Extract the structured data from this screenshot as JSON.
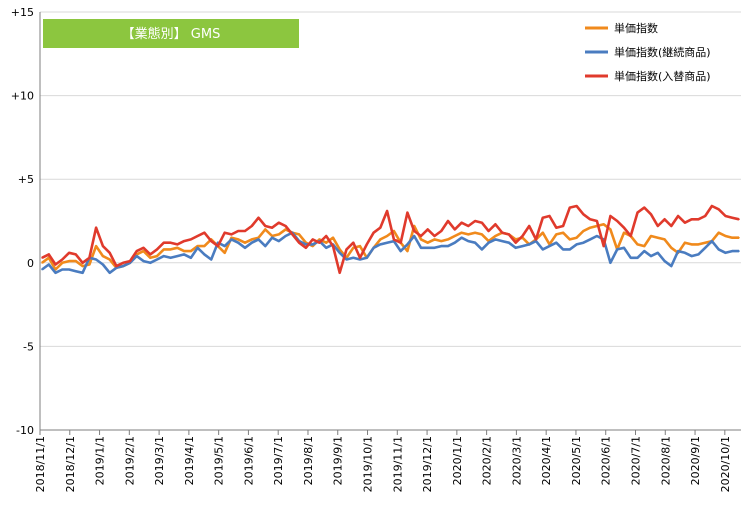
{
  "chart_data": {
    "type": "line",
    "title": "【業態別】 GMS",
    "title_box_color": "#8cc63f",
    "ylim": [
      -10,
      15
    ],
    "y_ticks": [
      {
        "value": 15,
        "label": "+15"
      },
      {
        "value": 10,
        "label": "+10"
      },
      {
        "value": 5,
        "label": "+5"
      },
      {
        "value": 0,
        "label": "0"
      },
      {
        "value": -5,
        "label": "-5"
      },
      {
        "value": -10,
        "label": "-10"
      }
    ],
    "x_tick_labels": [
      "2018/11/1",
      "2018/12/1",
      "2019/1/1",
      "2019/2/1",
      "2019/3/1",
      "2019/4/1",
      "2019/5/1",
      "2019/6/1",
      "2019/7/1",
      "2019/8/1",
      "2019/9/1",
      "2019/10/1",
      "2019/11/1",
      "2019/12/1",
      "2020/1/1",
      "2020/2/1",
      "2020/3/1",
      "2020/4/1",
      "2020/5/1",
      "2020/6/1",
      "2020/7/1",
      "2020/8/1",
      "2020/9/1",
      "2020/10/1"
    ],
    "points_per_month": 4.4,
    "legend_position": "top-right",
    "grid": "horizontal",
    "series": [
      {
        "name": "単価指数",
        "color": "#f08a1c",
        "values": [
          0.0,
          0.3,
          -0.4,
          0.0,
          0.1,
          0.1,
          -0.2,
          -0.1,
          1.0,
          0.4,
          0.2,
          -0.3,
          -0.2,
          0.0,
          0.5,
          0.7,
          0.3,
          0.4,
          0.8,
          0.8,
          0.9,
          0.7,
          0.7,
          1.0,
          1.0,
          1.4,
          1.0,
          0.6,
          1.5,
          1.4,
          1.2,
          1.4,
          1.5,
          2.0,
          1.6,
          1.7,
          2.0,
          1.8,
          1.7,
          1.2,
          1.0,
          1.4,
          1.2,
          1.5,
          0.8,
          0.3,
          0.9,
          1.0,
          0.3,
          0.9,
          1.4,
          1.6,
          1.9,
          1.2,
          0.7,
          2.2,
          1.4,
          1.2,
          1.4,
          1.3,
          1.4,
          1.6,
          1.8,
          1.7,
          1.8,
          1.7,
          1.3,
          1.6,
          1.8,
          1.7,
          1.4,
          1.5,
          1.1,
          1.4,
          1.8,
          1.1,
          1.7,
          1.8,
          1.4,
          1.5,
          1.9,
          2.1,
          2.2,
          2.3,
          2.0,
          0.8,
          1.8,
          1.6,
          1.1,
          1.0,
          1.6,
          1.5,
          1.4,
          0.9,
          0.6,
          1.2,
          1.1,
          1.1,
          1.2,
          1.3,
          1.8,
          1.6,
          1.5,
          1.5
        ]
      },
      {
        "name": "単価指数(継続商品)",
        "color": "#4a7cc0",
        "values": [
          -0.4,
          -0.1,
          -0.6,
          -0.4,
          -0.4,
          -0.5,
          -0.6,
          0.3,
          0.2,
          -0.1,
          -0.6,
          -0.3,
          -0.2,
          0.0,
          0.4,
          0.1,
          0.0,
          0.2,
          0.4,
          0.3,
          0.4,
          0.5,
          0.3,
          0.9,
          0.5,
          0.2,
          1.2,
          1.0,
          1.4,
          1.2,
          0.9,
          1.2,
          1.4,
          1.0,
          1.5,
          1.3,
          1.6,
          1.8,
          1.3,
          1.1,
          1.1,
          1.3,
          0.9,
          1.1,
          0.6,
          0.2,
          0.3,
          0.2,
          0.3,
          0.9,
          1.1,
          1.2,
          1.3,
          0.7,
          1.1,
          1.6,
          0.9,
          0.9,
          0.9,
          1.0,
          1.0,
          1.2,
          1.5,
          1.3,
          1.2,
          0.8,
          1.2,
          1.4,
          1.3,
          1.2,
          0.9,
          1.0,
          1.1,
          1.3,
          0.8,
          1.0,
          1.2,
          0.8,
          0.8,
          1.1,
          1.2,
          1.4,
          1.6,
          1.4,
          0.0,
          0.8,
          0.9,
          0.3,
          0.3,
          0.7,
          0.4,
          0.6,
          0.1,
          -0.2,
          0.7,
          0.6,
          0.4,
          0.5,
          0.9,
          1.3,
          0.8,
          0.6,
          0.7,
          0.7
        ]
      },
      {
        "name": "単価指数(入替商品)",
        "color": "#e03a2c",
        "values": [
          0.3,
          0.5,
          -0.1,
          0.2,
          0.6,
          0.5,
          0.0,
          0.3,
          2.1,
          1.0,
          0.6,
          -0.2,
          0.0,
          0.1,
          0.7,
          0.9,
          0.5,
          0.8,
          1.2,
          1.2,
          1.1,
          1.3,
          1.4,
          1.6,
          1.8,
          1.3,
          1.0,
          1.8,
          1.7,
          1.9,
          1.9,
          2.2,
          2.7,
          2.2,
          2.1,
          2.4,
          2.2,
          1.7,
          1.2,
          0.9,
          1.4,
          1.2,
          1.6,
          1.0,
          -0.6,
          0.8,
          1.2,
          0.3,
          1.1,
          1.8,
          2.1,
          3.1,
          1.4,
          1.2,
          3.0,
          1.9,
          1.6,
          2.0,
          1.6,
          1.9,
          2.5,
          2.0,
          2.4,
          2.2,
          2.5,
          2.4,
          1.9,
          2.3,
          1.8,
          1.7,
          1.2,
          1.6,
          2.2,
          1.4,
          2.7,
          2.8,
          2.1,
          2.2,
          3.3,
          3.4,
          2.9,
          2.6,
          2.5,
          1.0,
          2.8,
          2.5,
          2.1,
          1.6,
          3.0,
          3.3,
          2.9,
          2.2,
          2.6,
          2.2,
          2.8,
          2.4,
          2.6,
          2.6,
          2.8,
          3.4,
          3.2,
          2.8,
          2.7,
          2.6
        ]
      }
    ]
  }
}
